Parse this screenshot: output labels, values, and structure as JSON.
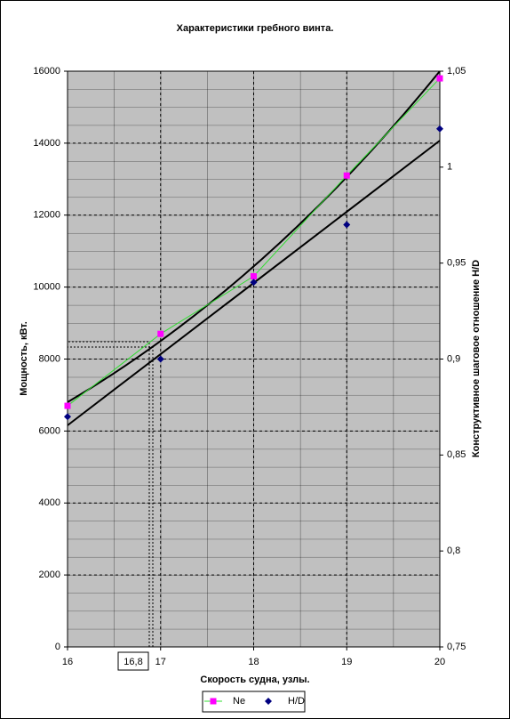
{
  "chart_data": {
    "type": "line",
    "title": "Характеристики гребного винта.",
    "x_label": "Скорость судна, узлы.",
    "y_label": "Мощность, кВт.",
    "y2_label": "Конструктивное шаговое отношение H/D",
    "annotation": "16,8",
    "x": [
      16,
      17,
      18,
      19,
      20
    ],
    "xlim": [
      16,
      20
    ],
    "xticks": [
      16,
      17,
      18,
      19,
      20
    ],
    "ylim": [
      0,
      16000
    ],
    "yticks": [
      0,
      2000,
      4000,
      6000,
      8000,
      10000,
      12000,
      14000,
      16000
    ],
    "y2lim": [
      0.75,
      1.05
    ],
    "y2ticks": [
      {
        "value": 0.75,
        "label": "0,75"
      },
      {
        "value": 0.8,
        "label": "0,8"
      },
      {
        "value": 0.85,
        "label": "0,85"
      },
      {
        "value": 0.9,
        "label": "0,9"
      },
      {
        "value": 0.95,
        "label": "0,95"
      },
      1,
      {
        "value": 1.05,
        "label": "1,05"
      }
    ],
    "grid": true,
    "series": [
      {
        "name": "Ne",
        "color": "#ff00ff",
        "line_color": "#33dd33",
        "marker": "square",
        "values": [
          6700,
          8700,
          10300,
          13100,
          15800
        ]
      },
      {
        "name": "H/D",
        "color": "#000080",
        "marker": "diamond",
        "axis": "y2",
        "values": [
          0.87,
          0.9,
          0.94,
          0.97,
          1.02
        ]
      }
    ]
  }
}
